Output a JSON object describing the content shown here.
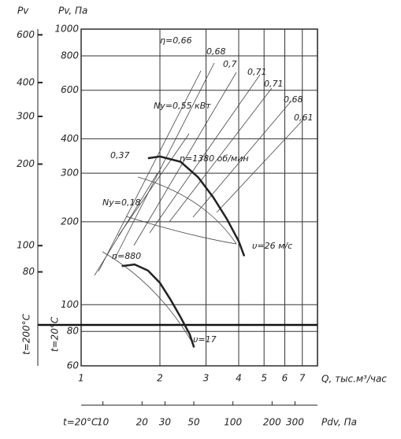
{
  "chart_data": {
    "type": "line",
    "y2_label": "Pv",
    "y_label": "Pv, Па",
    "x_label": "Q, тыс.м³/час",
    "x2_label": "Pdv, Па",
    "y2_temp_label": "t=200°C",
    "y_temp_label": "t=20°C",
    "x2_temp_label": "t=20°C",
    "log_scale": true,
    "grid": true,
    "xlim": [
      1,
      8
    ],
    "xticks": [
      1,
      2,
      3,
      4,
      5,
      6,
      7
    ],
    "ylim": [
      60,
      1000
    ],
    "yticks": [
      1000,
      800,
      600,
      400,
      300,
      200,
      100,
      80,
      60
    ],
    "y2lim": [
      36,
      630
    ],
    "y2ticks": [
      600,
      400,
      300,
      200,
      100,
      80
    ],
    "x2lim": [
      6.8,
      447
    ],
    "x2ticks": [
      10,
      20,
      30,
      50,
      100,
      200,
      300
    ],
    "series": [
      {
        "name": "n=1380 об/мин",
        "color": "#222222",
        "x": [
          1.8,
          2.0,
          2.4,
          2.8,
          3.2,
          3.6,
          4.0,
          4.2
        ],
        "values": [
          340,
          345,
          330,
          290,
          245,
          205,
          170,
          150
        ]
      },
      {
        "name": "n=880",
        "color": "#222222",
        "x": [
          1.43,
          1.6,
          1.8,
          2.0,
          2.2,
          2.4,
          2.6,
          2.7
        ],
        "values": [
          138,
          140,
          133,
          120,
          104,
          90,
          78,
          70
        ]
      }
    ],
    "annotations": [
      "η=0,66",
      "0,68",
      "0,7",
      "0,71",
      "0,71",
      "0,68",
      "0,61",
      "Nу=0,55 кВт",
      "0,37",
      "Nу=0,18",
      "υ=26 м/с",
      "υ=17"
    ]
  }
}
